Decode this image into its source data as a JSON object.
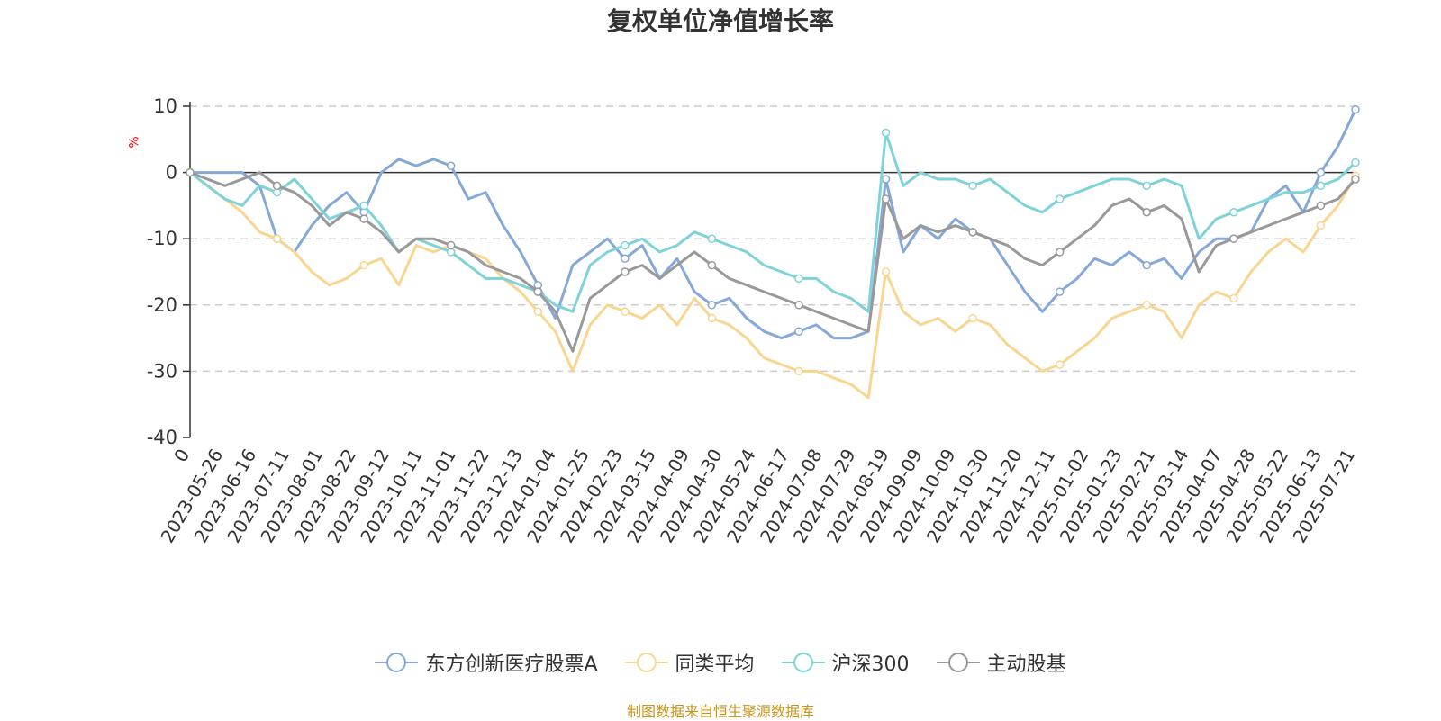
{
  "chart_data": {
    "type": "line",
    "title": "复权单位净值增长率",
    "ylabel": "%",
    "ylim": [
      -40,
      10
    ],
    "yticks": [
      10,
      0,
      -10,
      -20,
      -30,
      -40
    ],
    "xtick_labels": [
      "0",
      "2023-05-26",
      "2023-06-16",
      "2023-07-11",
      "2023-08-01",
      "2023-08-22",
      "2023-09-12",
      "2023-10-11",
      "2023-11-01",
      "2023-11-22",
      "2023-12-13",
      "2024-01-04",
      "2024-01-25",
      "2024-02-23",
      "2024-03-15",
      "2024-04-09",
      "2024-04-30",
      "2024-05-24",
      "2024-06-17",
      "2024-07-08",
      "2024-07-29",
      "2024-08-19",
      "2024-09-09",
      "2024-10-09",
      "2024-10-30",
      "2024-11-20",
      "2024-12-11",
      "2025-01-02",
      "2025-01-23",
      "2025-02-21",
      "2025-03-14",
      "2025-04-07",
      "2025-04-28",
      "2025-05-22",
      "2025-06-13",
      "2025-07-21"
    ],
    "grid": true,
    "legend_position": "bottom",
    "series": [
      {
        "name": "东方创新医疗股票A",
        "color": "#86a8d8",
        "values": [
          0,
          0,
          0,
          0,
          -2,
          -10,
          -12,
          -8,
          -5,
          -3,
          -6,
          0,
          2,
          1,
          2,
          1,
          -4,
          -3,
          -8,
          -12,
          -17,
          -22,
          -14,
          -12,
          -10,
          -13,
          -11,
          -16,
          -13,
          -18,
          -20,
          -19,
          -22,
          -24,
          -25,
          -24,
          -23,
          -25,
          -25,
          -24,
          -1,
          -12,
          -8,
          -10,
          -7,
          -9,
          -10,
          -14,
          -18,
          -21,
          -18,
          -16,
          -13,
          -14,
          -12,
          -14,
          -13,
          -16,
          -12,
          -10,
          -10,
          -9,
          -4,
          -2,
          -6,
          0,
          4,
          9.5
        ]
      },
      {
        "name": "同类平均",
        "color": "#f8d690",
        "values": [
          0,
          -2,
          -4,
          -6,
          -9,
          -10,
          -12,
          -15,
          -17,
          -16,
          -14,
          -13,
          -17,
          -11,
          -12,
          -11,
          -12,
          -13,
          -16,
          -18,
          -21,
          -24,
          -30,
          -23,
          -20,
          -21,
          -22,
          -20,
          -23,
          -19,
          -22,
          -23,
          -25,
          -28,
          -29,
          -30,
          -30,
          -31,
          -32,
          -34,
          -15,
          -21,
          -23,
          -22,
          -24,
          -22,
          -23,
          -26,
          -28,
          -30,
          -29,
          -27,
          -25,
          -22,
          -21,
          -20,
          -21,
          -25,
          -20,
          -18,
          -19,
          -15,
          -12,
          -10,
          -12,
          -8,
          -5,
          -0.5
        ]
      },
      {
        "name": "沪深300",
        "color": "#7fd3d8",
        "values": [
          0,
          -2,
          -4,
          -5,
          -2,
          -3,
          -1,
          -4,
          -7,
          -6,
          -5,
          -8,
          -12,
          -10,
          -11,
          -12,
          -14,
          -16,
          -16,
          -17,
          -18,
          -20,
          -21,
          -14,
          -12,
          -11,
          -10,
          -12,
          -11,
          -9,
          -10,
          -11,
          -12,
          -14,
          -15,
          -16,
          -16,
          -18,
          -19,
          -21,
          6,
          -2,
          0,
          -1,
          -1,
          -2,
          -1,
          -3,
          -5,
          -6,
          -4,
          -3,
          -2,
          -1,
          -1,
          -2,
          -1,
          -2,
          -10,
          -7,
          -6,
          -5,
          -4,
          -3,
          -3,
          -2,
          -1,
          1.5
        ]
      },
      {
        "name": "主动股基",
        "color": "#999999",
        "values": [
          0,
          -1,
          -2,
          -1,
          0,
          -2,
          -3,
          -5,
          -8,
          -6,
          -7,
          -9,
          -12,
          -10,
          -10,
          -11,
          -12,
          -14,
          -15,
          -16,
          -18,
          -21,
          -27,
          -19,
          -17,
          -15,
          -14,
          -16,
          -14,
          -12,
          -14,
          -16,
          -17,
          -18,
          -19,
          -20,
          -21,
          -22,
          -23,
          -24,
          -4,
          -10,
          -8,
          -9,
          -8,
          -9,
          -10,
          -11,
          -13,
          -14,
          -12,
          -10,
          -8,
          -5,
          -4,
          -6,
          -5,
          -7,
          -15,
          -11,
          -10,
          -9,
          -8,
          -7,
          -6,
          -5,
          -4,
          -1
        ]
      }
    ],
    "legend": [
      "东方创新医疗股票A",
      "同类平均",
      "沪深300",
      "主动股基"
    ]
  },
  "source_text": "制图数据来自恒生聚源数据库"
}
